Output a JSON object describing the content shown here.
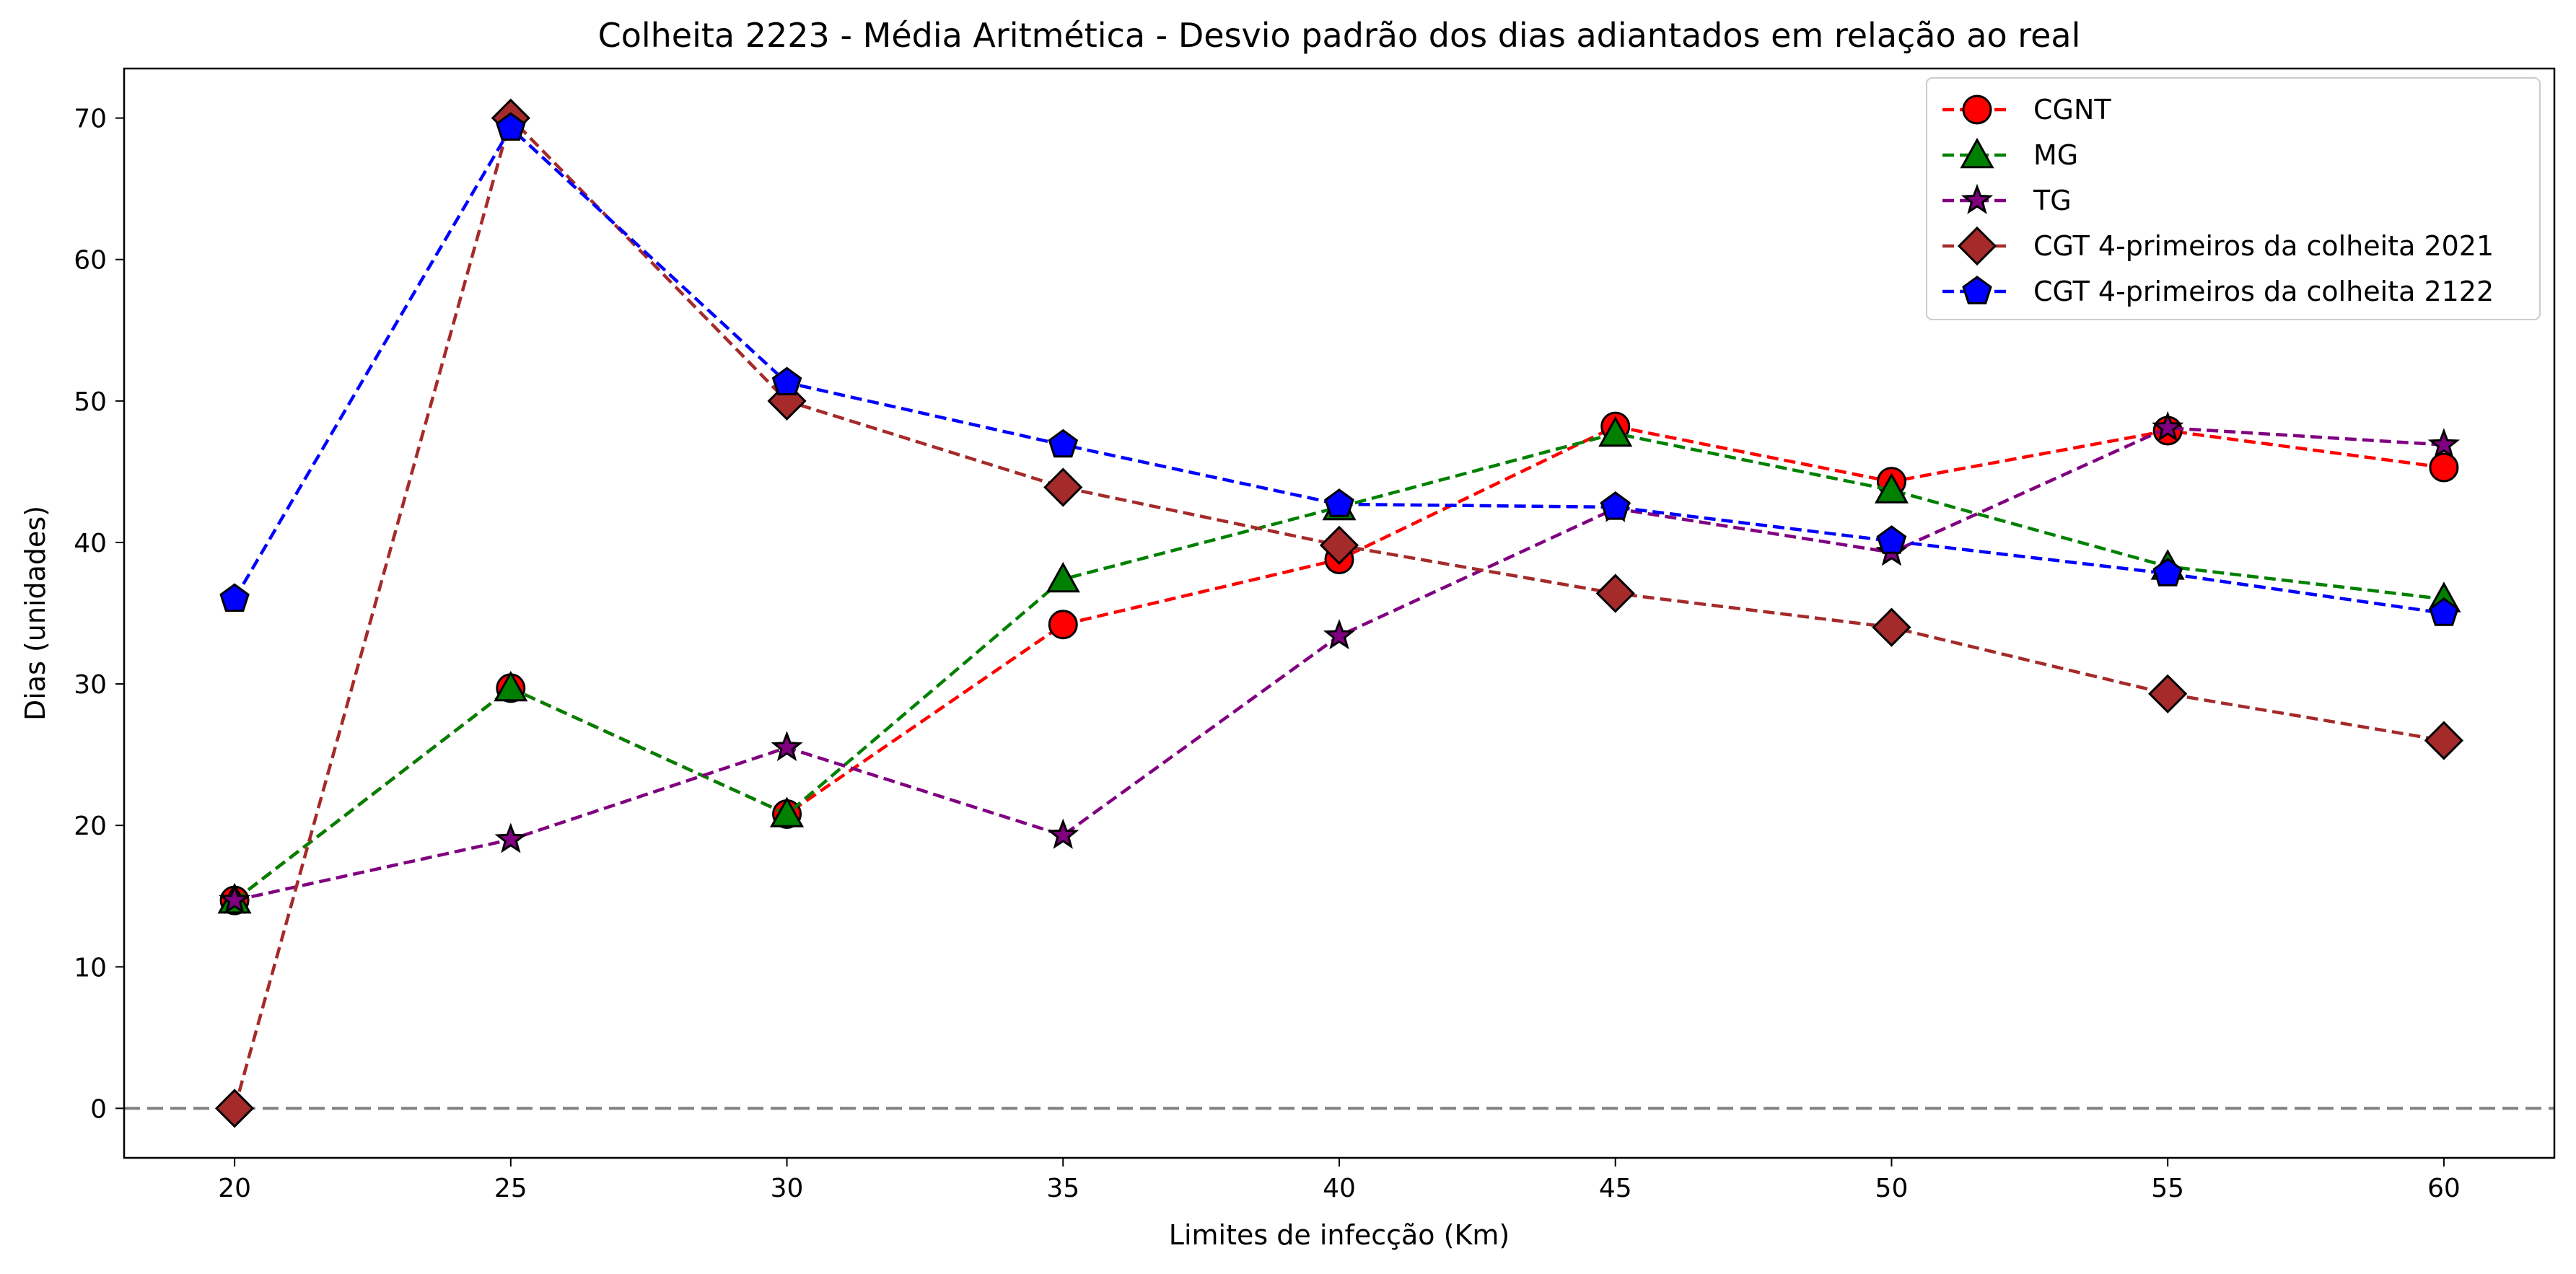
{
  "chart_data": {
    "type": "line",
    "title": "Colheita 2223 - Média Aritmética - Desvio padrão dos dias adiantados em relação ao real",
    "xlabel": "Limites de infecção (Km)",
    "ylabel": "Dias (unidades)",
    "x": [
      20,
      25,
      30,
      35,
      40,
      45,
      50,
      55,
      60
    ],
    "xticks": [
      "20",
      "25",
      "30",
      "35",
      "40",
      "45",
      "50",
      "55",
      "60"
    ],
    "xlim": [
      18,
      62
    ],
    "yticks": [
      "0",
      "10",
      "20",
      "30",
      "40",
      "50",
      "60",
      "70"
    ],
    "ylim": [
      -3.5,
      73.5
    ],
    "grid": false,
    "legend_position": "top-right",
    "reference_line": {
      "y": 0,
      "color": "#808080",
      "style": "dashed"
    },
    "series": [
      {
        "name": "CGNT",
        "color": "#ff0000",
        "marker": "circle",
        "values": [
          14.7,
          29.7,
          20.8,
          34.2,
          38.8,
          48.2,
          44.3,
          47.9,
          45.3
        ]
      },
      {
        "name": "MG",
        "color": "#008000",
        "marker": "triangle",
        "values": [
          14.7,
          29.7,
          20.8,
          37.4,
          42.5,
          47.7,
          43.7,
          38.3,
          36.0
        ]
      },
      {
        "name": "TG",
        "color": "#800080",
        "marker": "star",
        "values": [
          14.7,
          19.0,
          25.5,
          19.3,
          33.4,
          42.4,
          39.3,
          48.1,
          46.9
        ]
      },
      {
        "name": "CGT 4-primeiros da colheita 2021",
        "color": "#a52a2a",
        "marker": "diamond",
        "values": [
          0.0,
          70.0,
          50.0,
          43.9,
          39.8,
          36.4,
          34.0,
          29.3,
          26.0
        ]
      },
      {
        "name": "CGT 4-primeiros da colheita 2122",
        "color": "#0000ff",
        "marker": "pentagon",
        "values": [
          36.0,
          69.3,
          51.3,
          46.9,
          42.7,
          42.5,
          40.1,
          37.8,
          35.0
        ]
      }
    ]
  }
}
